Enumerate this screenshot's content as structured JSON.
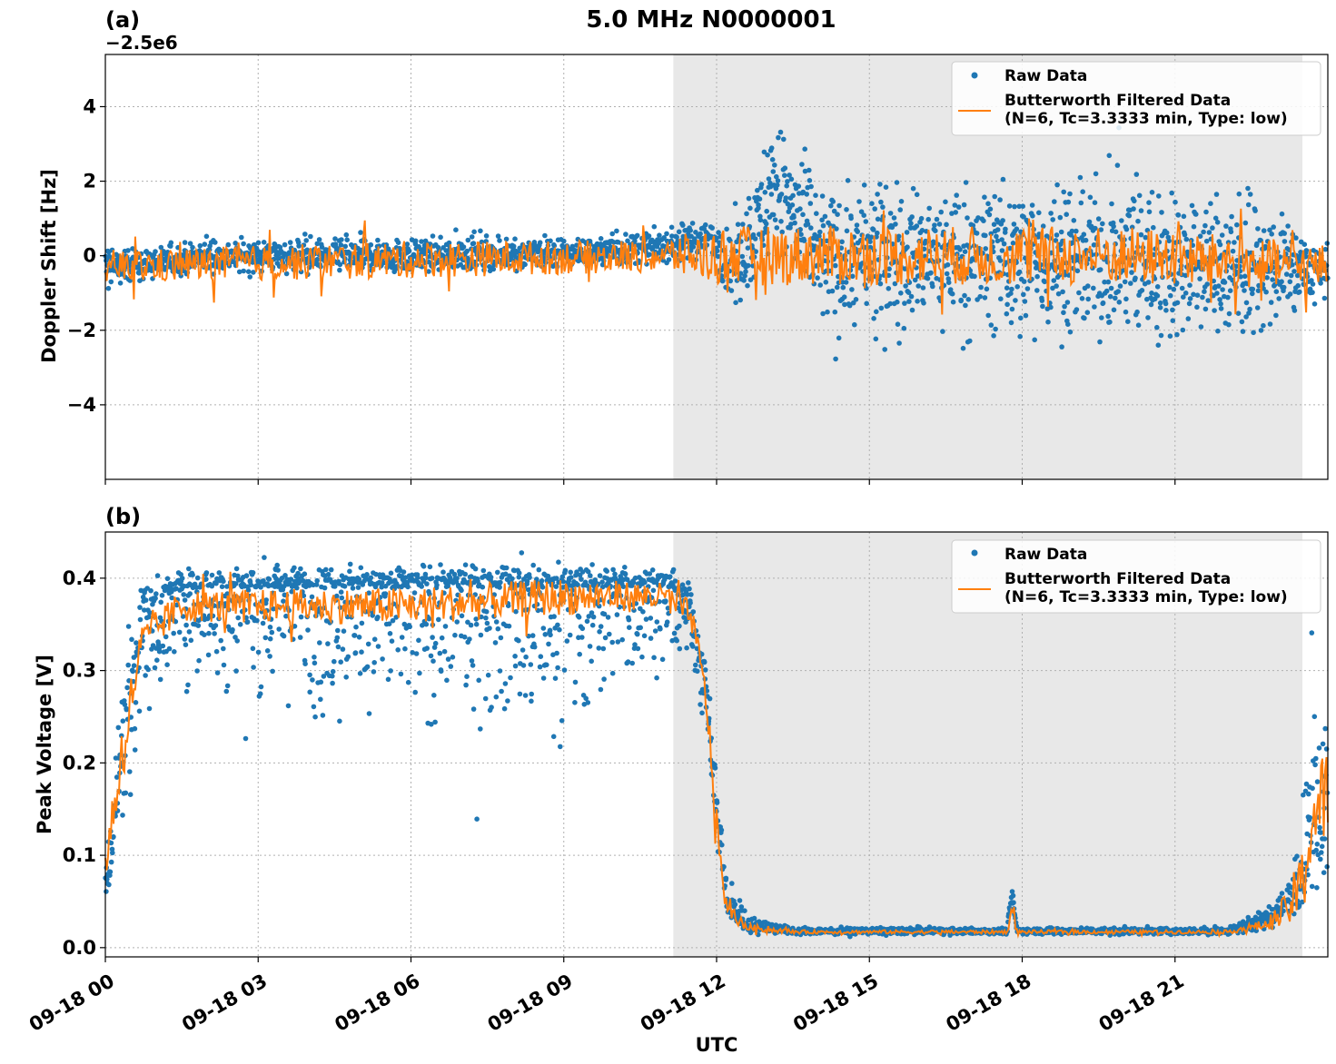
{
  "figure": {
    "title": "5.0 MHz N0000001",
    "xlabel": "UTC"
  },
  "chart_data": [
    {
      "type": "scatter",
      "panel_label": "(a)",
      "ylabel": "Doppler Shift [Hz]",
      "y_offset_text": "−2.5e6",
      "xlim_hours": [
        0,
        24
      ],
      "ylim": [
        -6,
        5.4
      ],
      "yticks": [
        -4,
        -2,
        0,
        2,
        4
      ],
      "ytick_labels": [
        "−4",
        "−2",
        "0",
        "2",
        "4"
      ],
      "shaded_region_hours": [
        11.15,
        23.5
      ],
      "grid": true,
      "legend_position": "top-right",
      "series": [
        {
          "name": "Raw Data",
          "kind": "scatter",
          "color": "#1f77b4",
          "profile_hours": [
            0,
            0.2,
            2,
            6,
            9,
            11,
            11.9,
            12.3,
            12.9,
            13.1,
            14,
            17,
            20,
            22.5,
            23.5,
            24
          ],
          "median": [
            -0.3,
            -0.3,
            0.0,
            0.0,
            0.05,
            0.25,
            0.5,
            -0.3,
            1.0,
            2.0,
            0.0,
            0.0,
            0.0,
            -0.3,
            -0.3,
            -0.5
          ],
          "spread_low": [
            1.2,
            0.6,
            0.6,
            0.6,
            0.5,
            0.6,
            0.8,
            1.5,
            1.8,
            2.0,
            2.8,
            2.9,
            3.0,
            2.8,
            1.3,
            1.3
          ],
          "spread_high": [
            1.0,
            0.6,
            0.6,
            0.6,
            0.6,
            0.6,
            0.7,
            1.2,
            2.2,
            2.4,
            2.4,
            2.6,
            2.8,
            2.6,
            1.0,
            1.0
          ]
        },
        {
          "name": "Butterworth Filtered Data\n(N=6, Tc=3.3333 min, Type: low)",
          "kind": "line",
          "color": "#ff7f0e",
          "profile_hours": [
            0,
            6,
            9,
            11,
            12,
            14,
            17,
            20,
            22.5,
            24
          ],
          "median": [
            -0.3,
            -0.1,
            -0.05,
            0.0,
            0.0,
            0.0,
            0.0,
            0.0,
            -0.2,
            -0.3
          ],
          "amplitude": [
            0.45,
            0.5,
            0.45,
            0.45,
            0.8,
            0.8,
            0.8,
            0.8,
            0.7,
            0.6
          ]
        }
      ]
    },
    {
      "type": "scatter",
      "panel_label": "(b)",
      "ylabel": "Peak Voltage [V]",
      "xlim_hours": [
        0,
        24
      ],
      "ylim": [
        -0.01,
        0.45
      ],
      "yticks": [
        0.0,
        0.1,
        0.2,
        0.3,
        0.4
      ],
      "ytick_labels": [
        "0.0",
        "0.1",
        "0.2",
        "0.3",
        "0.4"
      ],
      "xtick_hours": [
        0,
        3,
        6,
        9,
        12,
        15,
        18,
        21
      ],
      "xtick_labels": [
        "09-18 00",
        "09-18 03",
        "09-18 06",
        "09-18 09",
        "09-18 12",
        "09-18 15",
        "09-18 18",
        "09-18 21"
      ],
      "shaded_region_hours": [
        11.15,
        23.5
      ],
      "grid": true,
      "legend_position": "top-right",
      "series": [
        {
          "name": "Raw Data",
          "kind": "scatter",
          "color": "#1f77b4",
          "profile_hours": [
            0,
            0.3,
            0.7,
            1.5,
            3,
            6,
            9,
            11,
            11.5,
            11.8,
            12.0,
            12.2,
            12.6,
            13.5,
            17.7,
            17.8,
            17.9,
            22,
            22.8,
            23.2,
            23.5,
            23.7,
            24
          ],
          "median": [
            0.06,
            0.2,
            0.36,
            0.39,
            0.39,
            0.39,
            0.39,
            0.39,
            0.37,
            0.28,
            0.15,
            0.05,
            0.025,
            0.018,
            0.018,
            0.06,
            0.018,
            0.018,
            0.03,
            0.05,
            0.08,
            0.14,
            0.17
          ],
          "spread_low": [
            0.03,
            0.1,
            0.15,
            0.12,
            0.16,
            0.2,
            0.2,
            0.1,
            0.08,
            0.08,
            0.06,
            0.025,
            0.01,
            0.005,
            0.005,
            0.02,
            0.005,
            0.005,
            0.015,
            0.03,
            0.05,
            0.1,
            0.12
          ],
          "spread_high": [
            0.04,
            0.16,
            0.04,
            0.03,
            0.03,
            0.03,
            0.03,
            0.03,
            0.03,
            0.04,
            0.05,
            0.04,
            0.015,
            0.005,
            0.005,
            0.015,
            0.005,
            0.005,
            0.015,
            0.03,
            0.1,
            0.18,
            0.1
          ]
        },
        {
          "name": "Butterworth Filtered Data\n(N=6, Tc=3.3333 min, Type: low)",
          "kind": "line",
          "color": "#ff7f0e",
          "profile_hours": [
            0,
            0.3,
            0.7,
            1.5,
            3,
            6,
            9,
            11,
            11.5,
            11.8,
            12.0,
            12.2,
            12.6,
            13.5,
            17.7,
            17.8,
            17.9,
            22,
            22.8,
            23.2,
            23.5,
            23.7,
            24
          ],
          "median": [
            0.09,
            0.2,
            0.33,
            0.37,
            0.37,
            0.37,
            0.38,
            0.38,
            0.36,
            0.27,
            0.13,
            0.04,
            0.022,
            0.017,
            0.017,
            0.04,
            0.017,
            0.017,
            0.025,
            0.04,
            0.07,
            0.14,
            0.17
          ],
          "amplitude": [
            0.02,
            0.04,
            0.02,
            0.018,
            0.018,
            0.02,
            0.02,
            0.015,
            0.015,
            0.02,
            0.02,
            0.01,
            0.004,
            0.002,
            0.002,
            0.01,
            0.002,
            0.002,
            0.006,
            0.02,
            0.04,
            0.06,
            0.05
          ]
        }
      ]
    }
  ]
}
